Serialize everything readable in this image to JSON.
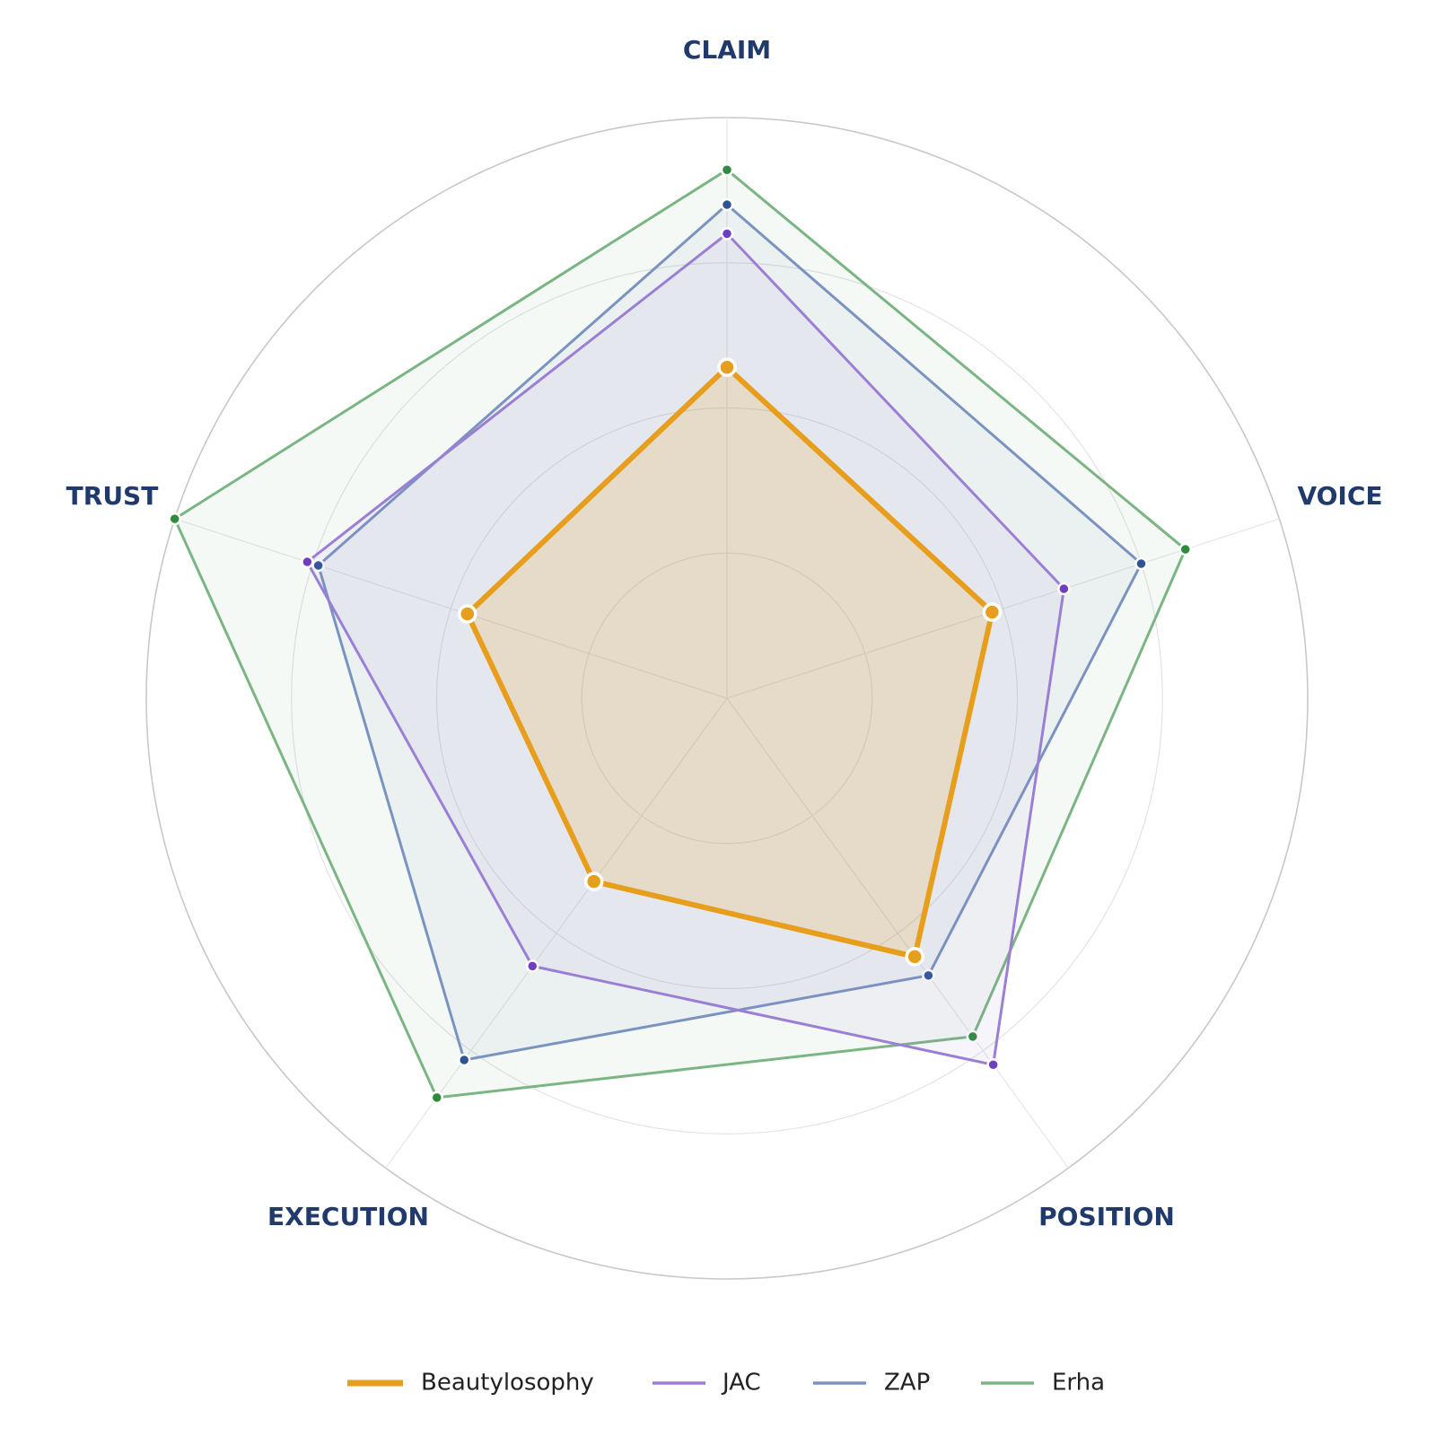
{
  "chart_data": {
    "type": "radar",
    "title": "",
    "axes": [
      "CLAIM",
      "VOICE",
      "POSITION",
      "EXECUTION",
      "TRUST"
    ],
    "range": [
      0,
      10
    ],
    "grid_rings": [
      2.5,
      5,
      7.5,
      10
    ],
    "grid": true,
    "legend_position": "bottom",
    "series": [
      {
        "name": "Beautylosophy",
        "values": [
          5.7,
          4.8,
          5.5,
          3.9,
          4.7
        ],
        "color": "#E89E1D",
        "marker_color": "#E89E1D",
        "fill_opacity": 0.18,
        "line_width": 6,
        "marker_radius": 9
      },
      {
        "name": "JAC",
        "values": [
          8.0,
          6.1,
          7.8,
          5.7,
          7.6
        ],
        "color": "#9B7FD4",
        "marker_color": "#6E3FC0",
        "fill_opacity": 0.08,
        "line_width": 3,
        "marker_radius": 6
      },
      {
        "name": "ZAP",
        "values": [
          8.5,
          7.5,
          5.9,
          7.7,
          7.4
        ],
        "color": "#7A93C0",
        "marker_color": "#2E5495",
        "fill_opacity": 0.08,
        "line_width": 3,
        "marker_radius": 6
      },
      {
        "name": "Erha",
        "values": [
          9.1,
          8.3,
          7.2,
          8.5,
          10.0
        ],
        "color": "#7BB583",
        "marker_color": "#2E8B3E",
        "fill_opacity": 0.08,
        "line_width": 3,
        "marker_radius": 6
      }
    ]
  },
  "colors": {
    "axis_label": "#1f3a6b",
    "grid": "#d9d9d9",
    "outer_ring": "#c8c8c8"
  }
}
